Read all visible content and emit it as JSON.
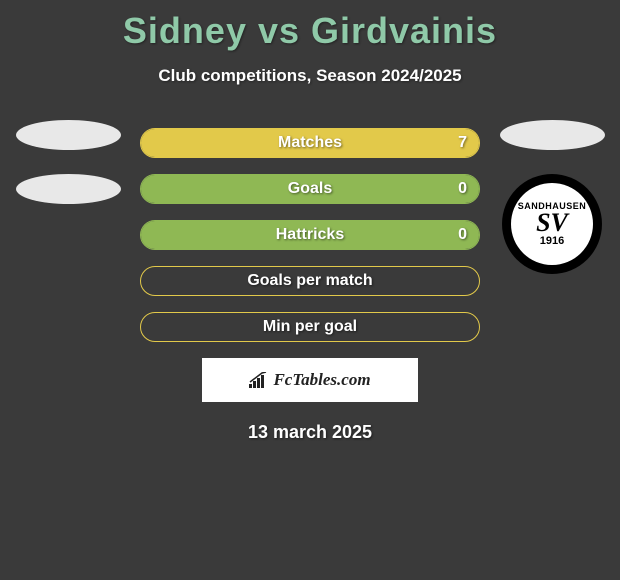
{
  "title": "Sidney vs Girdvainis",
  "subtitle": "Club competitions, Season 2024/2025",
  "date": "13 march 2025",
  "brand": "FcTables.com",
  "colors": {
    "background": "#3a3a3a",
    "title": "#8fc9a8",
    "left_team": "#8fb854",
    "right_team": "#e2c94a",
    "text": "#ffffff"
  },
  "left_badge": {
    "ellipse_count": 2,
    "ellipse_color": "#e8e8e8"
  },
  "right_badge": {
    "ellipse_count": 1,
    "ellipse_color": "#e8e8e8",
    "club_top": "SANDHAUSEN",
    "club_initials": "SV",
    "club_year": "1916"
  },
  "bars": [
    {
      "label": "Matches",
      "left_value": "",
      "right_value": "7",
      "left_fill_pct": 0,
      "right_fill_pct": 100,
      "left_color": "#8fb854",
      "right_color": "#e2c94a",
      "border_color": "#e2c94a"
    },
    {
      "label": "Goals",
      "left_value": "",
      "right_value": "0",
      "left_fill_pct": 100,
      "right_fill_pct": 0,
      "left_color": "#8fb854",
      "right_color": "#e2c94a",
      "border_color": "#8fb854"
    },
    {
      "label": "Hattricks",
      "left_value": "",
      "right_value": "0",
      "left_fill_pct": 100,
      "right_fill_pct": 0,
      "left_color": "#8fb854",
      "right_color": "#e2c94a",
      "border_color": "#8fb854"
    },
    {
      "label": "Goals per match",
      "left_value": "",
      "right_value": "",
      "left_fill_pct": 0,
      "right_fill_pct": 0,
      "left_color": "#8fb854",
      "right_color": "#e2c94a",
      "border_color": "#e2c94a"
    },
    {
      "label": "Min per goal",
      "left_value": "",
      "right_value": "",
      "left_fill_pct": 0,
      "right_fill_pct": 0,
      "left_color": "#8fb854",
      "right_color": "#e2c94a",
      "border_color": "#e2c94a"
    }
  ]
}
